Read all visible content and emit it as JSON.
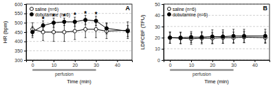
{
  "chart_data": [
    {
      "type": "line",
      "title": "A",
      "xlabel": "Time (min)",
      "ylabel": "HR (bpm)",
      "x": [
        0,
        5,
        10,
        15,
        20,
        25,
        30,
        35,
        45
      ],
      "xlim": [
        -3,
        47
      ],
      "xticks": [
        0,
        10,
        20,
        30,
        40
      ],
      "ylim": [
        300,
        600
      ],
      "yticks": [
        300,
        350,
        400,
        450,
        500,
        550,
        600
      ],
      "grid": true,
      "legend": "upper left",
      "series": [
        {
          "name": "saline (n=6)",
          "color": "#000000",
          "marker": "open-circle",
          "values": [
            465,
            450,
            450,
            450,
            455,
            465,
            465,
            455,
            460
          ],
          "errors": [
            35,
            45,
            50,
            50,
            45,
            45,
            45,
            40,
            45
          ]
        },
        {
          "name": "dobutamine (n=6)",
          "color": "#000000",
          "marker": "circle",
          "values": [
            450,
            485,
            500,
            505,
            505,
            515,
            510,
            470,
            455
          ],
          "errors": [
            30,
            25,
            25,
            20,
            25,
            25,
            25,
            30,
            30
          ]
        }
      ],
      "spans": [
        {
          "label": "perfusion",
          "x0": 0,
          "x1": 30
        }
      ],
      "annotations": [
        {
          "text": "*",
          "x": 5,
          "y": 520
        },
        {
          "text": "*",
          "x": 10,
          "y": 535
        },
        {
          "text": "*",
          "x": 15,
          "y": 535
        },
        {
          "text": "*",
          "x": 20,
          "y": 540
        },
        {
          "text": "*",
          "x": 25,
          "y": 550
        },
        {
          "text": "*",
          "x": 30,
          "y": 545
        }
      ]
    },
    {
      "type": "line",
      "title": "B",
      "xlabel": "Time (min)",
      "ylabel": "LDFCBF (TPU)",
      "x": [
        0,
        5,
        10,
        15,
        20,
        25,
        30,
        35,
        45
      ],
      "xlim": [
        -3,
        47
      ],
      "xticks": [
        0,
        10,
        20,
        30,
        40
      ],
      "ylim": [
        0,
        50
      ],
      "yticks": [
        0,
        10,
        20,
        30,
        40,
        50
      ],
      "grid": true,
      "legend": "upper left",
      "series": [
        {
          "name": "saline (n=6)",
          "color": "#000000",
          "marker": "open-circle",
          "values": [
            20,
            19.5,
            19,
            19.5,
            19.5,
            20,
            20,
            20.5,
            20
          ],
          "errors": [
            5,
            5,
            5,
            5,
            5,
            5,
            5,
            5,
            5
          ]
        },
        {
          "name": "dobutamine (n=6)",
          "color": "#000000",
          "marker": "circle",
          "values": [
            20,
            20,
            20.5,
            20.5,
            21,
            21,
            21.5,
            21.5,
            21.5
          ],
          "errors": [
            5,
            5,
            5,
            5,
            6,
            6,
            6,
            6,
            6
          ]
        }
      ],
      "spans": [
        {
          "label": "perfusion",
          "x0": 0,
          "x1": 30
        }
      ],
      "annotations": []
    }
  ]
}
